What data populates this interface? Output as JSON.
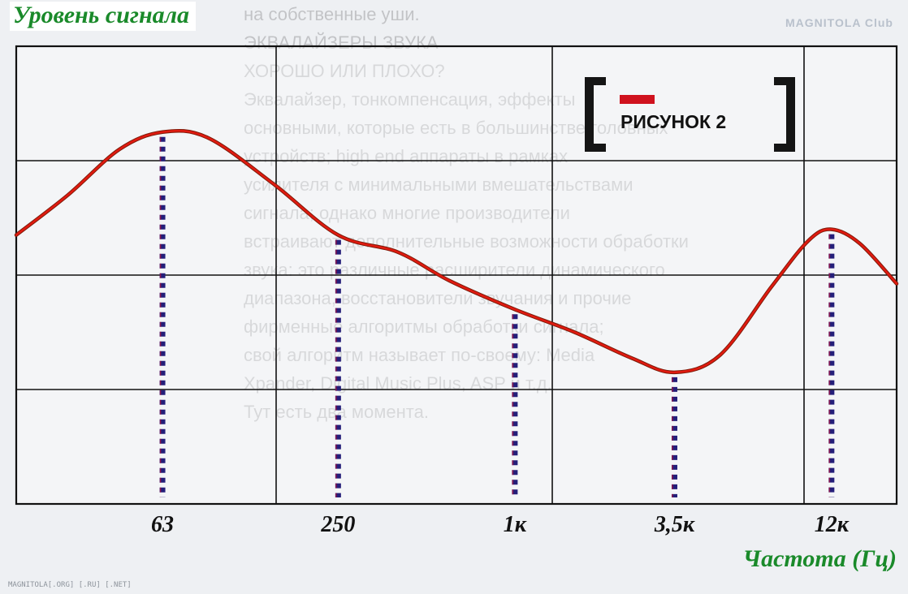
{
  "chart_data": {
    "type": "line",
    "title": "РИСУНОК 2",
    "ylabel": "Уровень сигнала",
    "xlabel": "Частота (Гц)",
    "x_scale": "log",
    "categories": [
      "63",
      "250",
      "1к",
      "3,5к",
      "12к"
    ],
    "series": [
      {
        "x": [
          20,
          30,
          45,
          63,
          90,
          150,
          250,
          400,
          600,
          1000,
          1600,
          2500,
          3500,
          5000,
          7500,
          10000,
          12000,
          15000,
          20000
        ],
        "values": [
          4.7,
          5.4,
          6.2,
          6.5,
          6.4,
          5.6,
          4.7,
          4.4,
          3.9,
          3.4,
          3.0,
          2.55,
          2.3,
          2.6,
          3.8,
          4.6,
          4.8,
          4.55,
          3.85
        ]
      }
    ],
    "markers_at": [
      {
        "label": "63",
        "level": 6.5
      },
      {
        "label": "250",
        "level": 4.7
      },
      {
        "label": "1к",
        "level": 3.4
      },
      {
        "label": "3,5к",
        "level": 2.3
      },
      {
        "label": "12к",
        "level": 4.8
      }
    ],
    "ylim": [
      0,
      8
    ],
    "grid": true,
    "colors": {
      "curve": "#e01a10",
      "curve_outline": "#7a1a08",
      "markers": "#241f7a",
      "marker_accent": "#cc1030",
      "axis_labels": "#1a8a2a",
      "grid": "#111111"
    }
  },
  "logo_text": "MAGNITOLA Club",
  "footer_text": "MAGNITOLA[.ORG] [.RU] [.NET]"
}
